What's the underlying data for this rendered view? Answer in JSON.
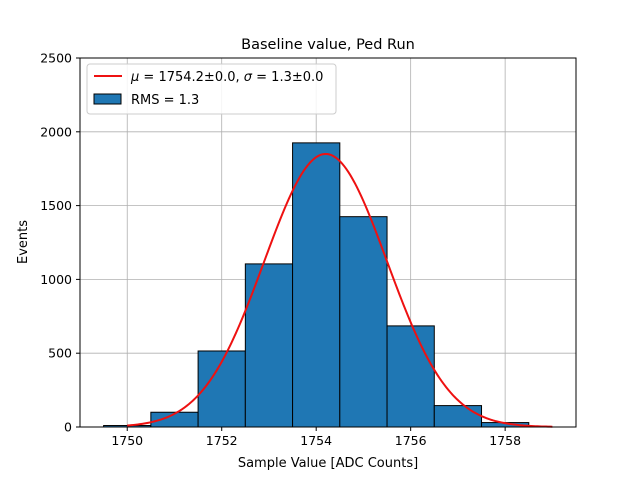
{
  "chart_data": {
    "type": "bar",
    "title": "Baseline value, Ped Run",
    "xlabel": "Sample Value [ADC Counts]",
    "ylabel": "Events",
    "xlim": [
      1749.0,
      1759.5
    ],
    "ylim": [
      0,
      2500
    ],
    "xticks": [
      1750,
      1752,
      1754,
      1756,
      1758
    ],
    "yticks": [
      0,
      500,
      1000,
      1500,
      2000,
      2500
    ],
    "grid": true,
    "legend_position": "top-left",
    "histogram": {
      "name": "RMS = 1.3",
      "bin_edges": [
        1749.5,
        1750.5,
        1751.5,
        1752.5,
        1753.5,
        1754.5,
        1755.5,
        1756.5,
        1757.5,
        1758.5
      ],
      "counts": [
        10,
        100,
        515,
        1105,
        1925,
        1425,
        685,
        145,
        30
      ],
      "color": "#1f77b4",
      "edge_color": "#000000"
    },
    "fit": {
      "name": "$\\mu=1754.2\\pm0.0$, $\\sigma=1.3\\pm0.0$",
      "label_parts": [
        "μ",
        " = 1754.2±0.0, ",
        "σ",
        " = 1.3±0.0"
      ],
      "type": "gaussian",
      "amplitude": 1850,
      "mu": 1754.2,
      "sigma": 1.3,
      "x_range": [
        1750.0,
        1759.0
      ],
      "color": "#ee1111"
    }
  }
}
